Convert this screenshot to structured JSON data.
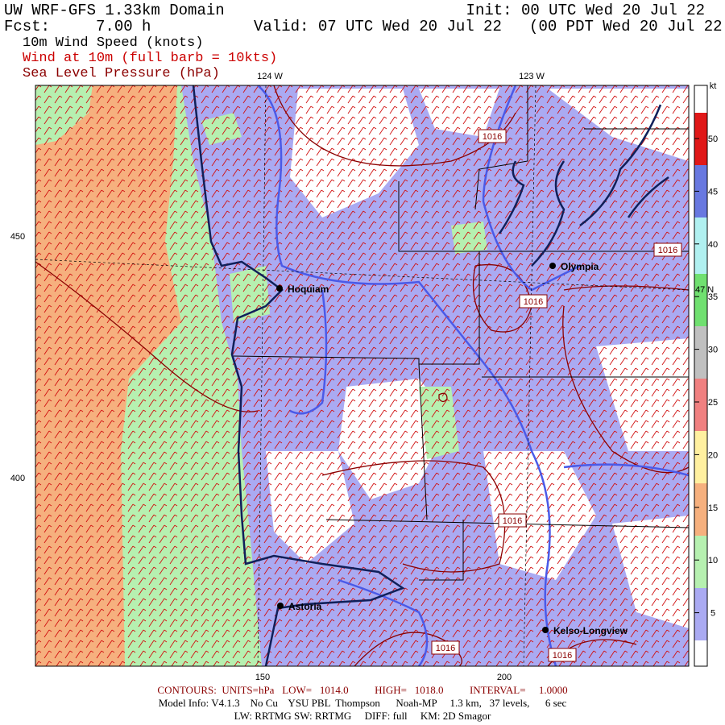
{
  "header": {
    "title": "UW WRF-GFS 1.33km Domain",
    "init": "Init: 00 UTC Wed 20 Jul 22",
    "forecast": "Fcst:     7.00 h",
    "valid": "Valid: 07 UTC Wed 20 Jul 22   (00 PDT Wed 20 Jul 22  )",
    "fields": [
      "10m Wind Speed (knots)",
      "Wind at 10m (full barb = 10kts)",
      "Sea Level Pressure (hPa)"
    ]
  },
  "map": {
    "lon_labels": [
      "124 W",
      "123 W"
    ],
    "lat_label": "47 N",
    "left_labels": [
      "450",
      "400"
    ],
    "bottom_labels": [
      "150",
      "200"
    ],
    "cities": [
      "Hoquiam",
      "Olympia",
      "Astoria",
      "Kelso-Longview"
    ],
    "contour_labels": [
      "1016",
      "1016",
      "1016",
      "1016",
      "1016",
      "1016"
    ]
  },
  "colorbar": {
    "unit": "kt",
    "labels": [
      "50",
      "45",
      "40",
      "35",
      "30",
      "25",
      "20",
      "15",
      "10",
      "5"
    ]
  },
  "footer": {
    "contours": "CONTOURS:  UNITS=hPa   LOW=   1014.0          HIGH=   1018.0          INTERVAL=     1.0000",
    "model": "Model Info: V4.1.3    No Cu    YSU PBL  Thompson      Noah-MP     1.3 km,   37 levels,      6 sec",
    "physics": "LW: RRTMG SW: RRTMG     DIFF: full     KM: 2D Smagor"
  }
}
